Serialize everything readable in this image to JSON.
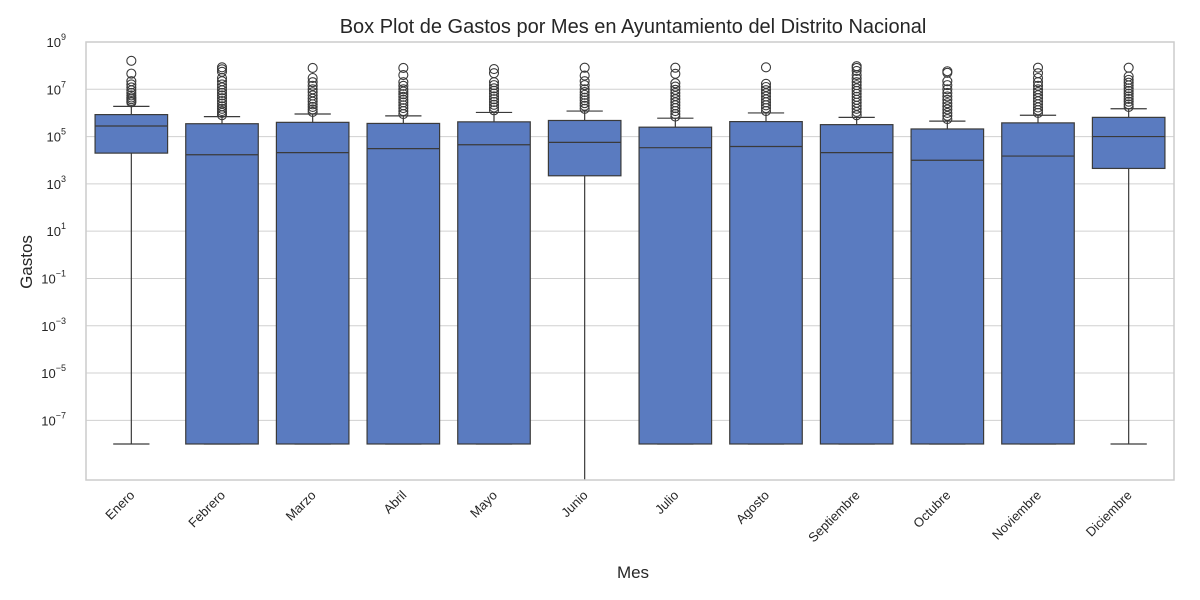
{
  "chart_data": {
    "type": "box",
    "title": "Box Plot de Gastos por Mes en Ayuntamiento del Distrito Nacional",
    "xlabel": "Mes",
    "ylabel": "Gastos",
    "yscale": "log",
    "ylim": [
      3e-10,
      1000000000.0
    ],
    "yticks": [
      {
        "base": "10",
        "exp": "9",
        "value": 1000000000.0
      },
      {
        "base": "10",
        "exp": "7",
        "value": 10000000.0
      },
      {
        "base": "10",
        "exp": "5",
        "value": 100000.0
      },
      {
        "base": "10",
        "exp": "3",
        "value": 1000.0
      },
      {
        "base": "10",
        "exp": "1",
        "value": 10.0
      },
      {
        "base": "10",
        "exp": "−1",
        "value": 0.1
      },
      {
        "base": "10",
        "exp": "−3",
        "value": 0.001
      },
      {
        "base": "10",
        "exp": "−5",
        "value": 1e-05
      },
      {
        "base": "10",
        "exp": "−7",
        "value": 1e-07
      }
    ],
    "grid": true,
    "colors": {
      "box": "#5a7bc0",
      "line": "#3a3a3a",
      "grid": "#d0d0d0",
      "frame": "#cccccc"
    },
    "categories": [
      "Enero",
      "Febrero",
      "Marzo",
      "Abril",
      "Mayo",
      "Junio",
      "Julio",
      "Agosto",
      "Septiembre",
      "Octubre",
      "Noviembre",
      "Diciembre"
    ],
    "boxes": [
      {
        "q1": 20000.0,
        "median": 280000.0,
        "q3": 850000.0,
        "whisker_low": 1e-08,
        "whisker_high": 1900000.0,
        "outliers": [
          2800000.0,
          3200000.0,
          3800000.0,
          4500000.0,
          5500000.0,
          7000000.0,
          9000000.0,
          12000000.0,
          16000000.0,
          22000000.0,
          46000000.0,
          160000000.0
        ]
      },
      {
        "q1": 1e-08,
        "median": 17000.0,
        "q3": 350000.0,
        "whisker_low": 1e-08,
        "whisker_high": 700000.0,
        "outliers": [
          800000.0,
          1000000.0,
          1200000.0,
          1500000.0,
          1900000.0,
          2500000.0,
          3200000.0,
          4200000.0,
          5500000.0,
          7000000.0,
          9000000.0,
          12000000.0,
          16000000.0,
          22000000.0,
          30000000.0,
          55000000.0,
          70000000.0,
          85000000.0
        ]
      },
      {
        "q1": 1e-08,
        "median": 21000.0,
        "q3": 400000.0,
        "whisker_low": 1e-08,
        "whisker_high": 900000.0,
        "outliers": [
          1100000.0,
          1400000.0,
          1800000.0,
          2300000.0,
          3000000.0,
          4000000.0,
          5500000.0,
          7500000.0,
          10000000.0,
          14000000.0,
          20000000.0,
          30000000.0,
          80000000.0
        ]
      },
      {
        "q1": 1e-08,
        "median": 31000.0,
        "q3": 360000.0,
        "whisker_low": 1e-08,
        "whisker_high": 750000.0,
        "outliers": [
          900000.0,
          1200000.0,
          1600000.0,
          2100000.0,
          2800000.0,
          3600000.0,
          4800000.0,
          6200000.0,
          8000000.0,
          10000000.0,
          14000000.0,
          20000000.0,
          40000000.0,
          80000000.0
        ]
      },
      {
        "q1": 1e-08,
        "median": 45000.0,
        "q3": 420000.0,
        "whisker_low": 1e-08,
        "whisker_high": 1050000.0,
        "outliers": [
          1300000.0,
          1700000.0,
          2200000.0,
          2900000.0,
          3800000.0,
          5000000.0,
          6600000.0,
          8600000.0,
          11000000.0,
          15000000.0,
          20000000.0,
          48000000.0,
          72000000.0
        ]
      },
      {
        "q1": 2200.0,
        "median": 57000.0,
        "q3": 480000.0,
        "whisker_low": 2e-10,
        "whisker_high": 1200000.0,
        "outliers": [
          1500000.0,
          2000000.0,
          2600000.0,
          3400000.0,
          4400000.0,
          5800000.0,
          7600000.0,
          10000000.0,
          15000000.0,
          22000000.0,
          38000000.0,
          82000000.0
        ]
      },
      {
        "q1": 1e-08,
        "median": 34000.0,
        "q3": 250000.0,
        "whisker_low": 1e-08,
        "whisker_high": 600000.0,
        "outliers": [
          700000.0,
          900000.0,
          1200000.0,
          1600000.0,
          2100000.0,
          2800000.0,
          3800000.0,
          5200000.0,
          7000000.0,
          9500000.0,
          13000000.0,
          18000000.0,
          45000000.0,
          82000000.0
        ]
      },
      {
        "q1": 1e-08,
        "median": 38000.0,
        "q3": 430000.0,
        "whisker_low": 1e-08,
        "whisker_high": 1000000.0,
        "outliers": [
          1200000.0,
          1600000.0,
          2100000.0,
          2800000.0,
          3700000.0,
          5000000.0,
          6800000.0,
          9200000.0,
          12500000.0,
          17000000.0,
          85000000.0
        ]
      },
      {
        "q1": 1e-08,
        "median": 21000.0,
        "q3": 320000.0,
        "whisker_low": 1e-08,
        "whisker_high": 650000.0,
        "outliers": [
          800000.0,
          1100000.0,
          1500000.0,
          2000000.0,
          2700000.0,
          3600000.0,
          4800000.0,
          6400000.0,
          8500000.0,
          11000000.0,
          15000000.0,
          20000000.0,
          28000000.0,
          40000000.0,
          60000000.0,
          80000000.0,
          95000000.0
        ]
      },
      {
        "q1": 1e-08,
        "median": 10000.0,
        "q3": 210000.0,
        "whisker_low": 1e-08,
        "whisker_high": 450000.0,
        "outliers": [
          550000.0,
          750000.0,
          1000000.0,
          1400000.0,
          1900000.0,
          2600000.0,
          3600000.0,
          5000000.0,
          7000000.0,
          10000000.0,
          15000000.0,
          22000000.0,
          50000000.0,
          58000000.0
        ]
      },
      {
        "q1": 1e-08,
        "median": 15000.0,
        "q3": 380000.0,
        "whisker_low": 1e-08,
        "whisker_high": 800000.0,
        "outliers": [
          1000000.0,
          1300000.0,
          1700000.0,
          2300000.0,
          3100000.0,
          4200000.0,
          5600000.0,
          7600000.0,
          10000000.0,
          14000000.0,
          20000000.0,
          30000000.0,
          48000000.0,
          82000000.0
        ]
      },
      {
        "q1": 4500.0,
        "median": 100000.0,
        "q3": 650000.0,
        "whisker_low": 1e-08,
        "whisker_high": 1500000.0,
        "outliers": [
          1800000.0,
          2300000.0,
          3000000.0,
          3900000.0,
          5000000.0,
          6500000.0,
          8500000.0,
          11000000.0,
          14500000.0,
          19000000.0,
          25000000.0,
          35000000.0,
          82000000.0
        ]
      }
    ]
  }
}
